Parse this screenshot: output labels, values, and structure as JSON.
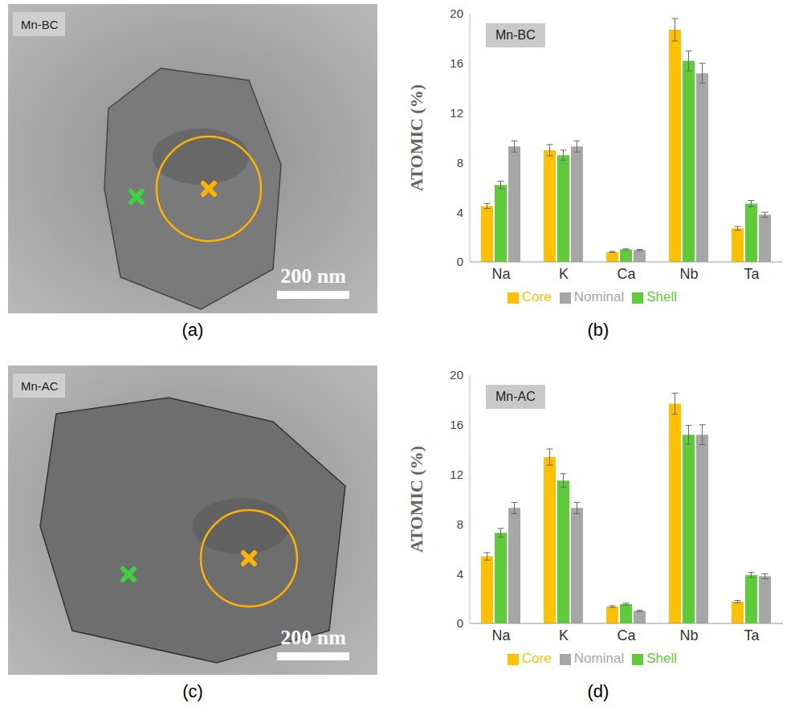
{
  "images": [
    {
      "panel_label": "(a)",
      "label": "Mn-BC",
      "scale_bar": "200 nm"
    },
    {
      "panel_label": "(c)",
      "label": "Mn-AC",
      "scale_bar": "200 nm"
    }
  ],
  "chart_data": [
    {
      "type": "bar",
      "panel_label": "(b)",
      "title": "Mn-BC",
      "y_label": "ATOMIC (%)",
      "categories": [
        "Na",
        "K",
        "Ca",
        "Nb",
        "Ta"
      ],
      "ylim": [
        0,
        20
      ],
      "yticks": [
        0,
        4,
        8,
        12,
        16,
        20
      ],
      "grid": false,
      "legend": "bottom",
      "series": [
        {
          "name": "Core",
          "color": "#ffc000",
          "values": [
            4.5,
            9.0,
            0.8,
            18.7,
            2.7
          ],
          "errors": [
            0.2,
            0.45,
            0.05,
            0.9,
            0.15
          ]
        },
        {
          "name": "Shell",
          "color": "#5ecc3a",
          "values": [
            6.2,
            8.6,
            1.0,
            16.2,
            4.7
          ],
          "errors": [
            0.3,
            0.4,
            0.05,
            0.8,
            0.25
          ]
        },
        {
          "name": "Nominal",
          "color": "#a6a6a6",
          "values": [
            9.3,
            9.3,
            0.95,
            15.2,
            3.8
          ],
          "errors": [
            0.45,
            0.45,
            0.05,
            0.8,
            0.2
          ]
        }
      ]
    },
    {
      "type": "bar",
      "panel_label": "(d)",
      "title": "Mn-AC",
      "y_label": "ATOMIC (%)",
      "categories": [
        "Na",
        "K",
        "Ca",
        "Nb",
        "Ta"
      ],
      "ylim": [
        0,
        20
      ],
      "yticks": [
        0,
        4,
        8,
        12,
        16,
        20
      ],
      "grid": false,
      "legend": "bottom",
      "series": [
        {
          "name": "Core",
          "color": "#ffc000",
          "values": [
            5.4,
            13.4,
            1.35,
            17.7,
            1.75
          ],
          "errors": [
            0.3,
            0.65,
            0.07,
            0.85,
            0.09
          ]
        },
        {
          "name": "Shell",
          "color": "#5ecc3a",
          "values": [
            7.3,
            11.5,
            1.55,
            15.2,
            3.9
          ],
          "errors": [
            0.35,
            0.55,
            0.08,
            0.75,
            0.2
          ]
        },
        {
          "name": "Nominal",
          "color": "#a6a6a6",
          "values": [
            9.3,
            9.3,
            1.0,
            15.2,
            3.8
          ],
          "errors": [
            0.45,
            0.45,
            0.05,
            0.8,
            0.2
          ]
        }
      ]
    }
  ]
}
